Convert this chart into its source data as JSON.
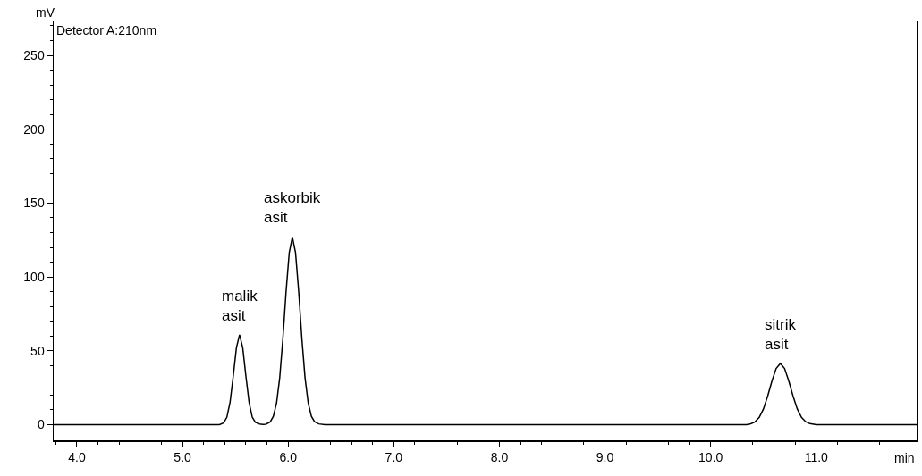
{
  "chart_data": {
    "type": "line",
    "xlabel": "min",
    "ylabel": "mV",
    "x": [
      3.78,
      5.35,
      5.39,
      5.42,
      5.45,
      5.48,
      5.51,
      5.54,
      5.57,
      5.6,
      5.63,
      5.66,
      5.69,
      5.73,
      5.76,
      5.79,
      5.83,
      5.86,
      5.89,
      5.92,
      5.95,
      5.98,
      6.01,
      6.04,
      6.07,
      6.1,
      6.13,
      6.16,
      6.19,
      6.22,
      6.25,
      6.29,
      6.35,
      10.34,
      10.38,
      10.42,
      10.46,
      10.5,
      10.54,
      10.58,
      10.62,
      10.66,
      10.7,
      10.74,
      10.78,
      10.82,
      10.86,
      10.9,
      10.94,
      11.0,
      11.95
    ],
    "series": [
      {
        "color": "#000000",
        "values": [
          0,
          0,
          1.3,
          5.1,
          15.2,
          32.8,
          52.1,
          60.8,
          52.1,
          32.8,
          15.2,
          5.1,
          1.5,
          0.4,
          0.2,
          0.3,
          1.8,
          5.6,
          14.5,
          31.7,
          58.2,
          89.8,
          116.4,
          127,
          116.4,
          89.8,
          58.2,
          31.7,
          14.5,
          5.6,
          2.0,
          0.5,
          0,
          0,
          0.6,
          1.9,
          4.9,
          10.6,
          19.3,
          29.5,
          38.0,
          41.4,
          38.0,
          29.5,
          19.3,
          10.6,
          4.9,
          2.0,
          0.7,
          0,
          0
        ]
      }
    ],
    "xlim": [
      3.78,
      11.95
    ],
    "xticks": [
      {
        "value": 3.8,
        "label": null
      },
      {
        "value": 4,
        "label": "4.0"
      },
      {
        "value": 4.2,
        "label": null
      },
      {
        "value": 4.4,
        "label": null
      },
      {
        "value": 4.6,
        "label": null
      },
      {
        "value": 4.8,
        "label": null
      },
      {
        "value": 5,
        "label": "5.0"
      },
      {
        "value": 5.2,
        "label": null
      },
      {
        "value": 5.4,
        "label": null
      },
      {
        "value": 5.6,
        "label": null
      },
      {
        "value": 5.8,
        "label": null
      },
      {
        "value": 6,
        "label": "6.0"
      },
      {
        "value": 6.2,
        "label": null
      },
      {
        "value": 6.4,
        "label": null
      },
      {
        "value": 6.6,
        "label": null
      },
      {
        "value": 6.8,
        "label": null
      },
      {
        "value": 7,
        "label": "7.0"
      },
      {
        "value": 7.2,
        "label": null
      },
      {
        "value": 7.4,
        "label": null
      },
      {
        "value": 7.6,
        "label": null
      },
      {
        "value": 7.8,
        "label": null
      },
      {
        "value": 8,
        "label": "8.0"
      },
      {
        "value": 8.2,
        "label": null
      },
      {
        "value": 8.4,
        "label": null
      },
      {
        "value": 8.6,
        "label": null
      },
      {
        "value": 8.8,
        "label": null
      },
      {
        "value": 9,
        "label": "9.0"
      },
      {
        "value": 9.2,
        "label": null
      },
      {
        "value": 9.4,
        "label": null
      },
      {
        "value": 9.6,
        "label": null
      },
      {
        "value": 9.8,
        "label": null
      },
      {
        "value": 10,
        "label": "10.0"
      },
      {
        "value": 10.2,
        "label": null
      },
      {
        "value": 10.4,
        "label": null
      },
      {
        "value": 10.6,
        "label": null
      },
      {
        "value": 10.8,
        "label": null
      },
      {
        "value": 11,
        "label": "11.0"
      },
      {
        "value": 11.2,
        "label": null
      },
      {
        "value": 11.4,
        "label": null
      },
      {
        "value": 11.6,
        "label": null
      },
      {
        "value": 11.8,
        "label": null
      }
    ],
    "ylim": [
      -10.6,
      273
    ],
    "yticks": [
      0,
      {
        "value": 10,
        "label": null
      },
      {
        "value": 20,
        "label": null
      },
      {
        "value": 30,
        "label": null
      },
      {
        "value": 40,
        "label": null
      },
      50,
      {
        "value": 60,
        "label": null
      },
      {
        "value": 70,
        "label": null
      },
      {
        "value": 80,
        "label": null
      },
      {
        "value": 90,
        "label": null
      },
      100,
      {
        "value": 110,
        "label": null
      },
      {
        "value": 120,
        "label": null
      },
      {
        "value": 130,
        "label": null
      },
      {
        "value": 140,
        "label": null
      },
      150,
      {
        "value": 160,
        "label": null
      },
      {
        "value": 170,
        "label": null
      },
      {
        "value": 180,
        "label": null
      },
      {
        "value": 190,
        "label": null
      },
      200,
      {
        "value": 210,
        "label": null
      },
      {
        "value": 220,
        "label": null
      },
      {
        "value": 230,
        "label": null
      },
      {
        "value": 240,
        "label": null
      },
      250,
      {
        "value": 260,
        "label": null
      },
      {
        "value": 270,
        "label": null
      }
    ],
    "grid": false,
    "legend": false,
    "marker": "none",
    "line_style": "solid",
    "annotations": [
      "Detector A:210nm",
      {
        "text": "malik\nasit",
        "x": 5.54,
        "y": 60.8
      },
      {
        "text": "askorbik\nasit",
        "x": 6.04,
        "y": 127
      },
      {
        "text": "sitrik\nasit",
        "x": 10.66,
        "y": 41.4
      }
    ]
  }
}
